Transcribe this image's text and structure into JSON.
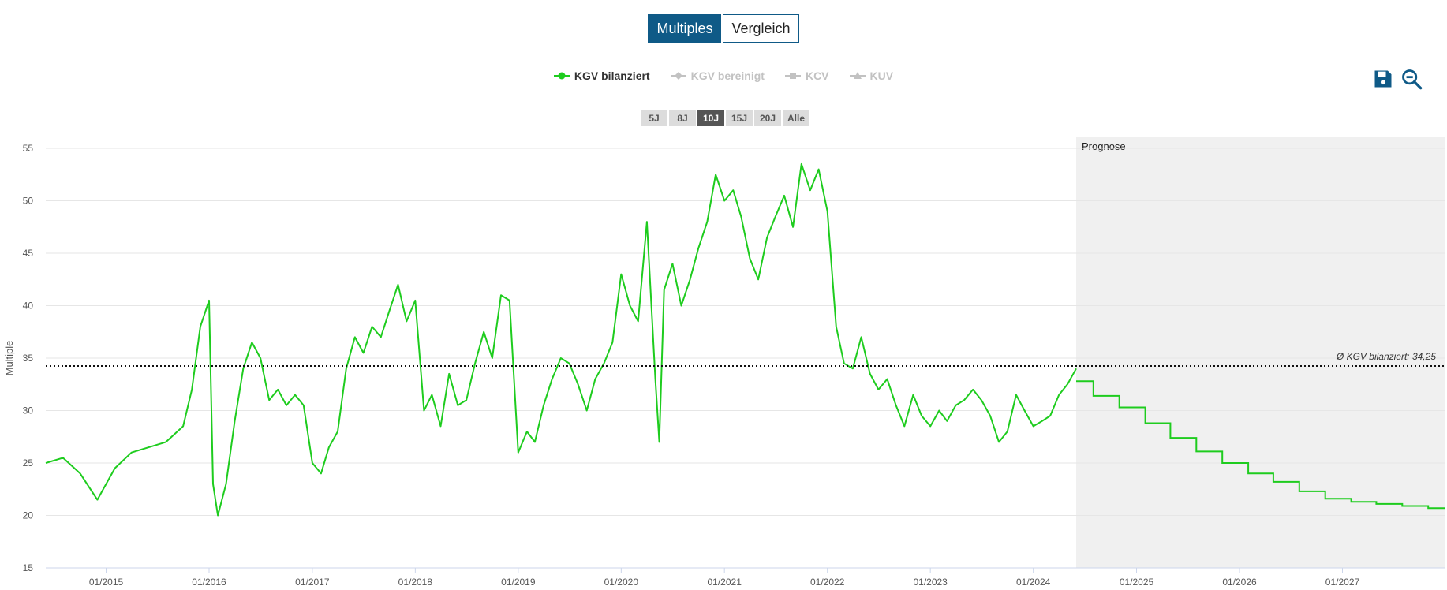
{
  "tabs": {
    "multiples": "Multiples",
    "vergleich": "Vergleich"
  },
  "legend": [
    {
      "label": "KGV bilanziert",
      "color": "#1ecc1e",
      "active": true,
      "marker": "circle"
    },
    {
      "label": "KGV bereinigt",
      "color": "#c2c2c2",
      "active": false,
      "marker": "diamond"
    },
    {
      "label": "KCV",
      "color": "#c2c2c2",
      "active": false,
      "marker": "square"
    },
    {
      "label": "KUV",
      "color": "#c2c2c2",
      "active": false,
      "marker": "triangle"
    }
  ],
  "toolbar": {
    "save_icon": "floppy-disk-icon",
    "zoom_icon": "zoom-out-icon"
  },
  "ranges": [
    "5J",
    "8J",
    "10J",
    "15J",
    "20J",
    "Alle"
  ],
  "selected_range": "10J",
  "chart_data": {
    "type": "line",
    "ylabel": "Multiple",
    "ylim": [
      15,
      55
    ],
    "yticks": [
      15,
      20,
      25,
      30,
      35,
      40,
      45,
      50,
      55
    ],
    "xlim": [
      "2014-06-01",
      "2028-01-01"
    ],
    "xticks": [
      "01/2015",
      "01/2016",
      "01/2017",
      "01/2018",
      "01/2019",
      "01/2020",
      "01/2021",
      "01/2022",
      "01/2023",
      "01/2024",
      "01/2025",
      "01/2026",
      "01/2027"
    ],
    "forecast_start": "2024-06-01",
    "forecast_label": "Prognose",
    "average": {
      "value": 34.25,
      "label": "Ø KGV bilanziert: 34,25"
    },
    "series": [
      {
        "name": "KGV bilanziert",
        "color": "#1ecc1e",
        "points": [
          [
            "2014-06",
            25.0
          ],
          [
            "2014-08",
            25.5
          ],
          [
            "2014-10",
            24.0
          ],
          [
            "2014-12",
            21.5
          ],
          [
            "2015-02",
            24.5
          ],
          [
            "2015-04",
            26.0
          ],
          [
            "2015-06",
            26.5
          ],
          [
            "2015-08",
            27.0
          ],
          [
            "2015-10",
            28.5
          ],
          [
            "2015-11",
            32.0
          ],
          [
            "2015-12",
            38.0
          ],
          [
            "2016-01",
            40.5
          ],
          [
            "2016-01-15",
            23.0
          ],
          [
            "2016-02",
            20.0
          ],
          [
            "2016-03",
            23.0
          ],
          [
            "2016-04",
            29.0
          ],
          [
            "2016-05",
            34.0
          ],
          [
            "2016-06",
            36.5
          ],
          [
            "2016-07",
            35.0
          ],
          [
            "2016-08",
            31.0
          ],
          [
            "2016-09",
            32.0
          ],
          [
            "2016-10",
            30.5
          ],
          [
            "2016-11",
            31.5
          ],
          [
            "2016-12",
            30.5
          ],
          [
            "2017-01",
            25.0
          ],
          [
            "2017-02",
            24.0
          ],
          [
            "2017-03",
            26.5
          ],
          [
            "2017-04",
            28.0
          ],
          [
            "2017-05",
            34.0
          ],
          [
            "2017-06",
            37.0
          ],
          [
            "2017-07",
            35.5
          ],
          [
            "2017-08",
            38.0
          ],
          [
            "2017-09",
            37.0
          ],
          [
            "2017-10",
            39.5
          ],
          [
            "2017-11",
            42.0
          ],
          [
            "2017-12",
            38.5
          ],
          [
            "2018-01",
            40.5
          ],
          [
            "2018-02",
            30.0
          ],
          [
            "2018-03",
            31.5
          ],
          [
            "2018-04",
            28.5
          ],
          [
            "2018-05",
            33.5
          ],
          [
            "2018-06",
            30.5
          ],
          [
            "2018-07",
            31.0
          ],
          [
            "2018-08",
            34.5
          ],
          [
            "2018-09",
            37.5
          ],
          [
            "2018-10",
            35.0
          ],
          [
            "2018-11",
            41.0
          ],
          [
            "2018-12",
            40.5
          ],
          [
            "2019-01",
            26.0
          ],
          [
            "2019-02",
            28.0
          ],
          [
            "2019-03",
            27.0
          ],
          [
            "2019-04",
            30.5
          ],
          [
            "2019-05",
            33.0
          ],
          [
            "2019-06",
            35.0
          ],
          [
            "2019-07",
            34.5
          ],
          [
            "2019-08",
            32.5
          ],
          [
            "2019-09",
            30.0
          ],
          [
            "2019-10",
            33.0
          ],
          [
            "2019-11",
            34.5
          ],
          [
            "2019-12",
            36.5
          ],
          [
            "2020-01",
            43.0
          ],
          [
            "2020-02",
            40.0
          ],
          [
            "2020-03",
            38.5
          ],
          [
            "2020-04",
            48.0
          ],
          [
            "2020-05",
            33.0
          ],
          [
            "2020-05-15",
            27.0
          ],
          [
            "2020-06",
            41.5
          ],
          [
            "2020-07",
            44.0
          ],
          [
            "2020-08",
            40.0
          ],
          [
            "2020-09",
            42.5
          ],
          [
            "2020-10",
            45.5
          ],
          [
            "2020-11",
            48.0
          ],
          [
            "2020-12",
            52.5
          ],
          [
            "2021-01",
            50.0
          ],
          [
            "2021-02",
            51.0
          ],
          [
            "2021-03",
            48.5
          ],
          [
            "2021-04",
            44.5
          ],
          [
            "2021-05",
            42.5
          ],
          [
            "2021-06",
            46.5
          ],
          [
            "2021-07",
            48.5
          ],
          [
            "2021-08",
            50.5
          ],
          [
            "2021-09",
            47.5
          ],
          [
            "2021-10",
            53.5
          ],
          [
            "2021-11",
            51.0
          ],
          [
            "2021-12",
            53.0
          ],
          [
            "2022-01",
            49.0
          ],
          [
            "2022-02",
            38.0
          ],
          [
            "2022-03",
            34.5
          ],
          [
            "2022-04",
            34.0
          ],
          [
            "2022-05",
            37.0
          ],
          [
            "2022-06",
            33.5
          ],
          [
            "2022-07",
            32.0
          ],
          [
            "2022-08",
            33.0
          ],
          [
            "2022-09",
            30.5
          ],
          [
            "2022-10",
            28.5
          ],
          [
            "2022-11",
            31.5
          ],
          [
            "2022-12",
            29.5
          ],
          [
            "2023-01",
            28.5
          ],
          [
            "2023-02",
            30.0
          ],
          [
            "2023-03",
            29.0
          ],
          [
            "2023-04",
            30.5
          ],
          [
            "2023-05",
            31.0
          ],
          [
            "2023-06",
            32.0
          ],
          [
            "2023-07",
            31.0
          ],
          [
            "2023-08",
            29.5
          ],
          [
            "2023-09",
            27.0
          ],
          [
            "2023-10",
            28.0
          ],
          [
            "2023-11",
            31.5
          ],
          [
            "2023-12",
            30.0
          ],
          [
            "2024-01",
            28.5
          ],
          [
            "2024-02",
            29.0
          ],
          [
            "2024-03",
            29.5
          ],
          [
            "2024-04",
            31.5
          ],
          [
            "2024-05",
            32.5
          ],
          [
            "2024-06",
            34.0
          ]
        ],
        "forecast_steps": [
          [
            "2024-06",
            32.8
          ],
          [
            "2024-08",
            31.4
          ],
          [
            "2024-11",
            30.3
          ],
          [
            "2025-02",
            28.8
          ],
          [
            "2025-05",
            27.4
          ],
          [
            "2025-08",
            26.1
          ],
          [
            "2025-11",
            25.0
          ],
          [
            "2026-02",
            24.0
          ],
          [
            "2026-05",
            23.2
          ],
          [
            "2026-08",
            22.3
          ],
          [
            "2026-11",
            21.6
          ],
          [
            "2027-02",
            21.3
          ],
          [
            "2027-05",
            21.1
          ],
          [
            "2027-08",
            20.9
          ],
          [
            "2027-11",
            20.7
          ],
          [
            "2028-01",
            20.7
          ]
        ]
      }
    ]
  }
}
